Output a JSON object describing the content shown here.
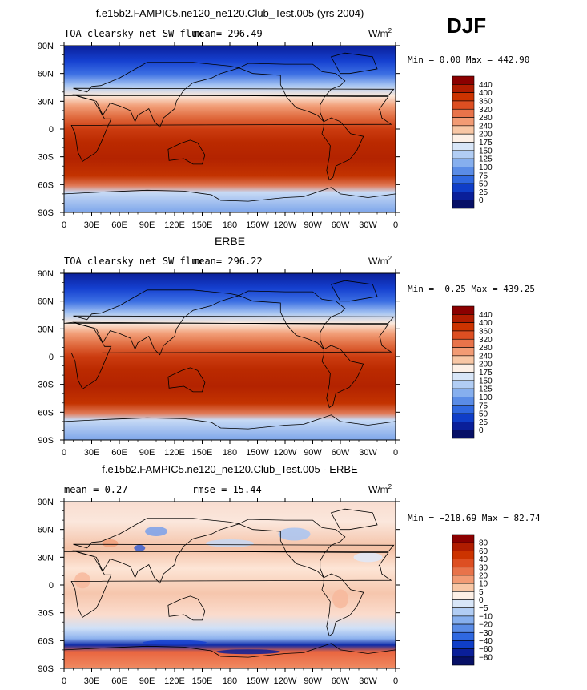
{
  "season": "DJF",
  "panels": [
    {
      "id": "model",
      "title": "f.e15b2.FAMPIC5.ne120_ne120.Club_Test.005 (yrs 2004)",
      "left_label": "TOA clearsky net SW flux",
      "mean_label": "mean= 296.49",
      "units_base": "W/m",
      "units_exp": "2",
      "minmax": "Min =   0.00 Max = 442.90",
      "colorbar_labels": [
        "440",
        "400",
        "360",
        "320",
        "280",
        "240",
        "200",
        "175",
        "150",
        "125",
        "100",
        "75",
        "50",
        "25",
        "0"
      ],
      "colorbar_colors": [
        "#8b0000",
        "#b01c00",
        "#cc3300",
        "#dd4f22",
        "#e8734a",
        "#f29b74",
        "#f8c7a5",
        "#fdf0e6",
        "#d8e6f8",
        "#b1cdf4",
        "#86afee",
        "#5a8ce6",
        "#2f68e0",
        "#0f3ec8",
        "#0a1f99",
        "#071066"
      ],
      "field": "sw"
    },
    {
      "id": "obs",
      "title": "ERBE",
      "left_label": "TOA clearsky net SW flux",
      "mean_label": "mean= 296.22",
      "units_base": "W/m",
      "units_exp": "2",
      "minmax": "Min = −0.25 Max = 439.25",
      "colorbar_labels": [
        "440",
        "400",
        "360",
        "320",
        "280",
        "240",
        "200",
        "175",
        "150",
        "125",
        "100",
        "75",
        "50",
        "25",
        "0"
      ],
      "colorbar_colors": [
        "#8b0000",
        "#b01c00",
        "#cc3300",
        "#dd4f22",
        "#e8734a",
        "#f29b74",
        "#f8c7a5",
        "#fdf0e6",
        "#d8e6f8",
        "#b1cdf4",
        "#86afee",
        "#5a8ce6",
        "#2f68e0",
        "#0f3ec8",
        "#0a1f99",
        "#071066"
      ],
      "field": "sw"
    },
    {
      "id": "diff",
      "title": "f.e15b2.FAMPIC5.ne120_ne120.Club_Test.005 - ERBE",
      "left_label": "mean =     0.27",
      "mean_label": "rmse =   15.44",
      "units_base": "W/m",
      "units_exp": "2",
      "minmax": "Min = −218.69 Max =  82.74",
      "colorbar_labels": [
        "80",
        "60",
        "40",
        "30",
        "20",
        "10",
        "5",
        "0",
        "−5",
        "−10",
        "−20",
        "−30",
        "−40",
        "−60",
        "−80"
      ],
      "colorbar_colors": [
        "#8b0000",
        "#b01c00",
        "#cc3300",
        "#dd4f22",
        "#e8734a",
        "#f29b74",
        "#f8c7a5",
        "#fdf0e6",
        "#d8e6f8",
        "#b1cdf4",
        "#86afee",
        "#5a8ce6",
        "#2f68e0",
        "#0f3ec8",
        "#0a1f99",
        "#071066"
      ],
      "field": "diff"
    }
  ],
  "chart_data": [
    {
      "type": "heatmap",
      "title": "f.e15b2.FAMPIC5.ne120_ne120.Club_Test.005 (yrs 2004)",
      "variable": "TOA clearsky net SW flux",
      "units": "W/m2",
      "mean": 296.49,
      "min": 0.0,
      "max": 442.9,
      "x_ticks": [
        "0",
        "30E",
        "60E",
        "90E",
        "120E",
        "150E",
        "180",
        "150W",
        "120W",
        "90W",
        "60W",
        "30W",
        "0"
      ],
      "y_ticks": [
        "90N",
        "60N",
        "30N",
        "0",
        "30S",
        "60S",
        "90S"
      ],
      "levels": [
        0,
        25,
        50,
        75,
        100,
        125,
        150,
        175,
        200,
        240,
        280,
        320,
        360,
        400,
        440
      ]
    },
    {
      "type": "heatmap",
      "title": "ERBE",
      "variable": "TOA clearsky net SW flux",
      "units": "W/m2",
      "mean": 296.22,
      "min": -0.25,
      "max": 439.25,
      "x_ticks": [
        "0",
        "30E",
        "60E",
        "90E",
        "120E",
        "150E",
        "180",
        "150W",
        "120W",
        "90W",
        "60W",
        "30W",
        "0"
      ],
      "y_ticks": [
        "90N",
        "60N",
        "30N",
        "0",
        "30S",
        "60S",
        "90S"
      ],
      "levels": [
        0,
        25,
        50,
        75,
        100,
        125,
        150,
        175,
        200,
        240,
        280,
        320,
        360,
        400,
        440
      ]
    },
    {
      "type": "heatmap",
      "title": "f.e15b2.FAMPIC5.ne120_ne120.Club_Test.005 - ERBE",
      "units": "W/m2",
      "mean": 0.27,
      "rmse": 15.44,
      "min": -218.69,
      "max": 82.74,
      "x_ticks": [
        "0",
        "30E",
        "60E",
        "90E",
        "120E",
        "150E",
        "180",
        "150W",
        "120W",
        "90W",
        "60W",
        "30W",
        "0"
      ],
      "y_ticks": [
        "90N",
        "60N",
        "30N",
        "0",
        "30S",
        "60S",
        "90S"
      ],
      "levels": [
        -80,
        -60,
        -40,
        -30,
        -20,
        -10,
        -5,
        0,
        5,
        10,
        20,
        30,
        40,
        60,
        80
      ]
    }
  ]
}
